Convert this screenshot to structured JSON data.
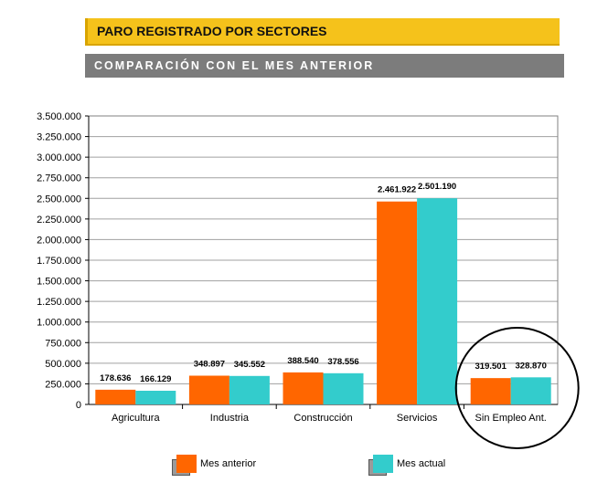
{
  "header": {
    "title": "PARO REGISTRADO POR SECTORES",
    "subtitle": "COMPARACIÓN CON EL MES ANTERIOR"
  },
  "colors": {
    "anterior": "#FF6600",
    "actual": "#33CCCC",
    "grid": "#A0A0A0",
    "highlight": "#000000"
  },
  "chart_data": {
    "type": "bar",
    "categories": [
      "Agricultura",
      "Industria",
      "Construcción",
      "Servicios",
      "Sin Empleo Ant."
    ],
    "series": [
      {
        "name": "Mes anterior",
        "values": [
          178636,
          348897,
          388540,
          2461922,
          319501
        ],
        "labels": [
          "178.636",
          "348.897",
          "388.540",
          "2.461.922",
          "319.501"
        ]
      },
      {
        "name": "Mes actual",
        "values": [
          166129,
          345552,
          378556,
          2501190,
          328870
        ],
        "labels": [
          "166.129",
          "345.552",
          "378.556",
          "2.501.190",
          "328.870"
        ]
      }
    ],
    "ylim": [
      0,
      3500000
    ],
    "yticks": [
      0,
      250000,
      500000,
      750000,
      1000000,
      1250000,
      1500000,
      1750000,
      2000000,
      2250000,
      2500000,
      2750000,
      3000000,
      3250000,
      3500000
    ],
    "ytick_labels": [
      "0",
      "250.000",
      "500.000",
      "750.000",
      "1.000.000",
      "1.250.000",
      "1.500.000",
      "1.750.000",
      "2.000.000",
      "2.250.000",
      "2.500.000",
      "2.750.000",
      "3.000.000",
      "3.250.000",
      "3.500.000"
    ],
    "grid": true,
    "legend": "bottom",
    "highlighted_category": "Sin Empleo Ant."
  }
}
